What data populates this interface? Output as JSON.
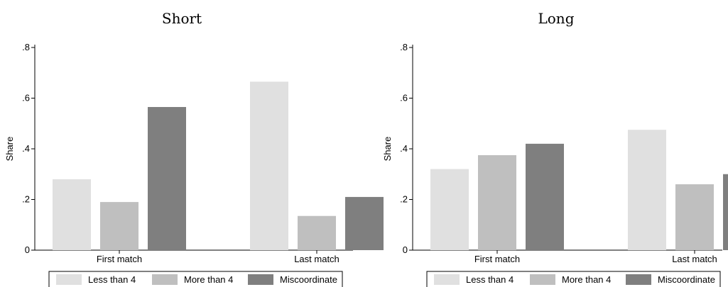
{
  "chart_data": [
    {
      "type": "bar",
      "title": "Short",
      "xlabel": "",
      "ylabel": "Share",
      "ylim": [
        0,
        0.8
      ],
      "yticks": [
        0,
        0.2,
        0.4,
        0.6,
        0.8
      ],
      "ytick_labels": [
        "0",
        ".2",
        ".4",
        ".6",
        ".8"
      ],
      "categories": [
        "First match",
        "Last match"
      ],
      "series": [
        {
          "name": "Less than 4",
          "color": "#e0e0e0",
          "values": [
            0.28,
            0.665
          ]
        },
        {
          "name": "More than 4",
          "color": "#bfbfbf",
          "values": [
            0.19,
            0.135
          ]
        },
        {
          "name": "Miscoordinate",
          "color": "#7f7f7f",
          "values": [
            0.565,
            0.21
          ]
        }
      ],
      "grid": false,
      "legend": "bottom"
    },
    {
      "type": "bar",
      "title": "Long",
      "xlabel": "",
      "ylabel": "Share",
      "ylim": [
        0,
        0.8
      ],
      "yticks": [
        0,
        0.2,
        0.4,
        0.6,
        0.8
      ],
      "ytick_labels": [
        "0",
        ".2",
        ".4",
        ".6",
        ".8"
      ],
      "categories": [
        "First match",
        "Last match"
      ],
      "series": [
        {
          "name": "Less than 4",
          "color": "#e0e0e0",
          "values": [
            0.32,
            0.475
          ]
        },
        {
          "name": "More than 4",
          "color": "#bfbfbf",
          "values": [
            0.375,
            0.26
          ]
        },
        {
          "name": "Miscoordinate",
          "color": "#7f7f7f",
          "values": [
            0.42,
            0.3
          ]
        }
      ],
      "grid": false,
      "legend": "bottom"
    }
  ]
}
